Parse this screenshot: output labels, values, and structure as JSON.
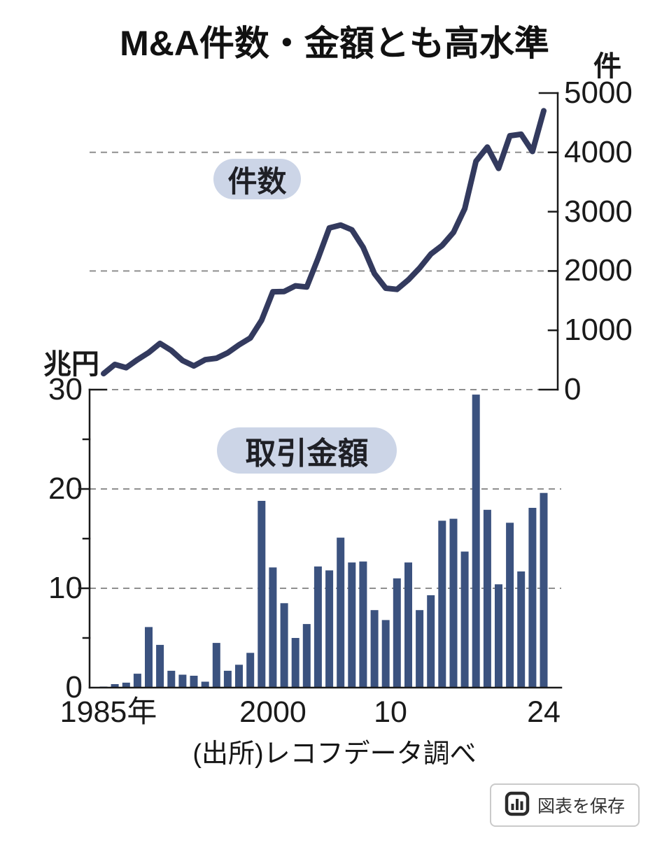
{
  "header": {
    "title": "M&A件数・金額とも高水準",
    "right_axis_unit": "件",
    "left_axis_unit": "兆円"
  },
  "labels": {
    "count_pill": "件数",
    "amount_pill": "取引金額"
  },
  "axes": {
    "right_ticks": [
      "5000",
      "4000",
      "3000",
      "2000",
      "1000",
      "0"
    ],
    "left_ticks": [
      "30",
      "20",
      "10",
      "0"
    ],
    "x_ticks": [
      "1985年",
      "2000",
      "10",
      "24"
    ]
  },
  "source": "(出所)レコフデータ調べ",
  "save_button": {
    "label": "図表を保存"
  },
  "colors": {
    "line": "#333a5e",
    "bar": "#3b527f",
    "pill_bg": "#ccd5e7",
    "grid": "#8f8f8f",
    "axis": "#1a1a1a",
    "button_border": "#cacaca",
    "button_text": "#333333",
    "icon": "#2b2b2b"
  },
  "chart_data": [
    {
      "type": "line",
      "name": "件数 (number of M&A deals)",
      "unit": "件",
      "axis_side": "right",
      "ylim": [
        0,
        5000
      ],
      "yticks": [
        0,
        1000,
        2000,
        3000,
        4000,
        5000
      ],
      "dashed_gridlines_at": [
        2000,
        4000
      ],
      "x": [
        1985,
        1986,
        1987,
        1988,
        1989,
        1990,
        1991,
        1992,
        1993,
        1994,
        1995,
        1996,
        1997,
        1998,
        1999,
        2000,
        2001,
        2002,
        2003,
        2004,
        2005,
        2006,
        2007,
        2008,
        2009,
        2010,
        2011,
        2012,
        2013,
        2014,
        2015,
        2016,
        2017,
        2018,
        2019,
        2020,
        2021,
        2022,
        2023,
        2024
      ],
      "values": [
        270,
        425,
        370,
        505,
        625,
        780,
        660,
        490,
        400,
        505,
        530,
        620,
        755,
        870,
        1170,
        1650,
        1655,
        1750,
        1730,
        2210,
        2725,
        2775,
        2695,
        2400,
        1955,
        1710,
        1690,
        1850,
        2050,
        2285,
        2430,
        2650,
        3050,
        3850,
        4090,
        3730,
        4280,
        4305,
        4015,
        4700
      ]
    },
    {
      "type": "bar",
      "name": "取引金額 (transaction value, trillion yen)",
      "unit": "兆円",
      "axis_side": "left",
      "ylim": [
        0,
        30
      ],
      "yticks": [
        0,
        10,
        20,
        30
      ],
      "dashed_gridlines_at": [
        10,
        20,
        30
      ],
      "x": [
        1985,
        1986,
        1987,
        1988,
        1989,
        1990,
        1991,
        1992,
        1993,
        1994,
        1995,
        1996,
        1997,
        1998,
        1999,
        2000,
        2001,
        2002,
        2003,
        2004,
        2005,
        2006,
        2007,
        2008,
        2009,
        2010,
        2011,
        2012,
        2013,
        2014,
        2015,
        2016,
        2017,
        2018,
        2019,
        2020,
        2021,
        2022,
        2023,
        2024
      ],
      "values": [
        0.1,
        0.35,
        0.5,
        1.4,
        6.1,
        4.3,
        1.7,
        1.3,
        1.2,
        0.6,
        4.5,
        1.7,
        2.3,
        3.5,
        18.8,
        12.1,
        8.5,
        5.0,
        6.4,
        12.2,
        11.8,
        15.1,
        12.6,
        12.7,
        7.8,
        6.8,
        11.0,
        12.6,
        7.8,
        9.3,
        16.8,
        17.0,
        13.7,
        29.5,
        17.9,
        10.4,
        16.6,
        11.7,
        18.1,
        19.6
      ]
    }
  ]
}
